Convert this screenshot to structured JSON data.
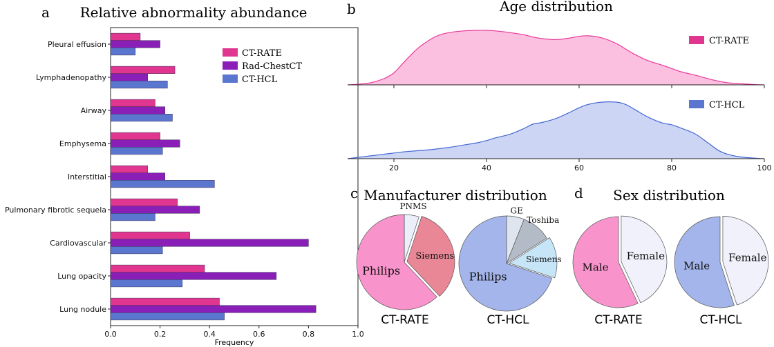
{
  "panel_labels": {
    "a": "a",
    "b": "b",
    "c": "c",
    "d": "d"
  },
  "colors": {
    "ct_rate": "#e0368f",
    "rad_chestct": "#8a1fb8",
    "ct_hcl": "#5b76cf",
    "ct_rate_fill": "#fbbfe0",
    "ct_hcl_fill": "#ccd5f4",
    "ct_rate_line": "#e8399a",
    "ct_hcl_line": "#4467d3"
  },
  "chart_data": [
    {
      "id": "abundance",
      "type": "bar",
      "orientation": "horizontal",
      "title": "Relative abnormality abundance",
      "xlabel": "Frequency",
      "ylabel": "",
      "xlim": [
        0,
        1.0
      ],
      "xticks": [
        "0.0",
        "0.2",
        "0.4",
        "0.6",
        "0.8",
        "1.0"
      ],
      "xtick_values": [
        0,
        0.2,
        0.4,
        0.6,
        0.8,
        1.0
      ],
      "legend_position": "top-right",
      "categories": [
        "Pleural effusion",
        "Lymphadenopathy",
        "Airway",
        "Emphysema",
        "Interstitial",
        "Pulmonary fibrotic sequela",
        "Cardiovascular",
        "Lung opacity",
        "Lung nodule"
      ],
      "series": [
        {
          "name": "CT-RATE",
          "values": [
            0.12,
            0.26,
            0.18,
            0.2,
            0.15,
            0.27,
            0.32,
            0.38,
            0.44
          ]
        },
        {
          "name": "Rad-ChestCT",
          "values": [
            0.2,
            0.15,
            0.22,
            0.28,
            0.22,
            0.36,
            0.8,
            0.67,
            0.83
          ]
        },
        {
          "name": "CT-HCL",
          "values": [
            0.1,
            0.23,
            0.25,
            0.21,
            0.42,
            0.18,
            0.21,
            0.29,
            0.46
          ]
        }
      ]
    },
    {
      "id": "age",
      "type": "area",
      "title": "Age distribution",
      "xlim": [
        10,
        100
      ],
      "xticks": [
        "20",
        "40",
        "60",
        "80",
        "100"
      ],
      "xtick_values": [
        20,
        40,
        60,
        80,
        100
      ],
      "series": [
        {
          "name": "CT-RATE",
          "x": [
            10,
            12,
            15,
            18,
            20,
            22,
            25,
            28,
            30,
            32,
            35,
            38,
            40,
            42,
            45,
            48,
            50,
            52,
            55,
            58,
            60,
            62,
            65,
            68,
            70,
            72,
            75,
            78,
            80,
            82,
            85,
            88,
            90,
            92,
            95,
            98,
            100
          ],
          "y": [
            0.0,
            0.01,
            0.04,
            0.12,
            0.22,
            0.4,
            0.66,
            0.84,
            0.92,
            0.96,
            0.99,
            1.0,
            1.0,
            0.99,
            0.96,
            0.92,
            0.88,
            0.85,
            0.83,
            0.86,
            0.89,
            0.9,
            0.86,
            0.76,
            0.66,
            0.56,
            0.44,
            0.36,
            0.3,
            0.24,
            0.18,
            0.11,
            0.07,
            0.04,
            0.02,
            0.005,
            0.0
          ]
        },
        {
          "name": "CT-HCL",
          "x": [
            10,
            12,
            15,
            18,
            20,
            22,
            25,
            28,
            30,
            32,
            35,
            38,
            40,
            42,
            45,
            48,
            50,
            52,
            55,
            58,
            60,
            62,
            65,
            68,
            70,
            72,
            75,
            78,
            80,
            82,
            85,
            88,
            90,
            92,
            95,
            98,
            100
          ],
          "y": [
            0.0,
            0.02,
            0.05,
            0.08,
            0.1,
            0.12,
            0.14,
            0.16,
            0.18,
            0.2,
            0.24,
            0.28,
            0.32,
            0.37,
            0.43,
            0.53,
            0.61,
            0.64,
            0.71,
            0.82,
            0.9,
            0.96,
            1.0,
            1.0,
            0.96,
            0.87,
            0.73,
            0.63,
            0.6,
            0.54,
            0.44,
            0.27,
            0.15,
            0.08,
            0.03,
            0.01,
            0.0
          ]
        }
      ]
    },
    {
      "id": "manufacturer",
      "type": "pie",
      "title": "Manufacturer distribution",
      "pies": [
        {
          "caption": "CT-RATE",
          "slices": [
            {
              "label": "PNMS",
              "value": 5,
              "color": "#eceef9",
              "exploded": false
            },
            {
              "label": "Siemens",
              "value": 33,
              "color": "#e98797",
              "exploded": true
            },
            {
              "label": "Philips",
              "value": 62,
              "color": "#f993cb",
              "exploded": false
            }
          ]
        },
        {
          "caption": "CT-HCL",
          "slices": [
            {
              "label": "GE",
              "value": 6,
              "color": "#dfe5ef",
              "exploded": false
            },
            {
              "label": "Toshiba",
              "value": 10,
              "color": "#b3bbc6",
              "exploded": false
            },
            {
              "label": "Siemens",
              "value": 14,
              "color": "#c6e6f8",
              "exploded": true
            },
            {
              "label": "Philips",
              "value": 70,
              "color": "#a3b5ea",
              "exploded": false
            }
          ]
        }
      ]
    },
    {
      "id": "sex",
      "type": "pie",
      "title": "Sex distribution",
      "pies": [
        {
          "caption": "CT-RATE",
          "slices": [
            {
              "label": "Female",
              "value": 43,
              "color": "#f0f1fb",
              "exploded": true
            },
            {
              "label": "Male",
              "value": 57,
              "color": "#f993cb",
              "exploded": false
            }
          ]
        },
        {
          "caption": "CT-HCL",
          "slices": [
            {
              "label": "Female",
              "value": 45,
              "color": "#f0f1fb",
              "exploded": true
            },
            {
              "label": "Male",
              "value": 55,
              "color": "#a3b5ea",
              "exploded": false
            }
          ]
        }
      ]
    }
  ]
}
